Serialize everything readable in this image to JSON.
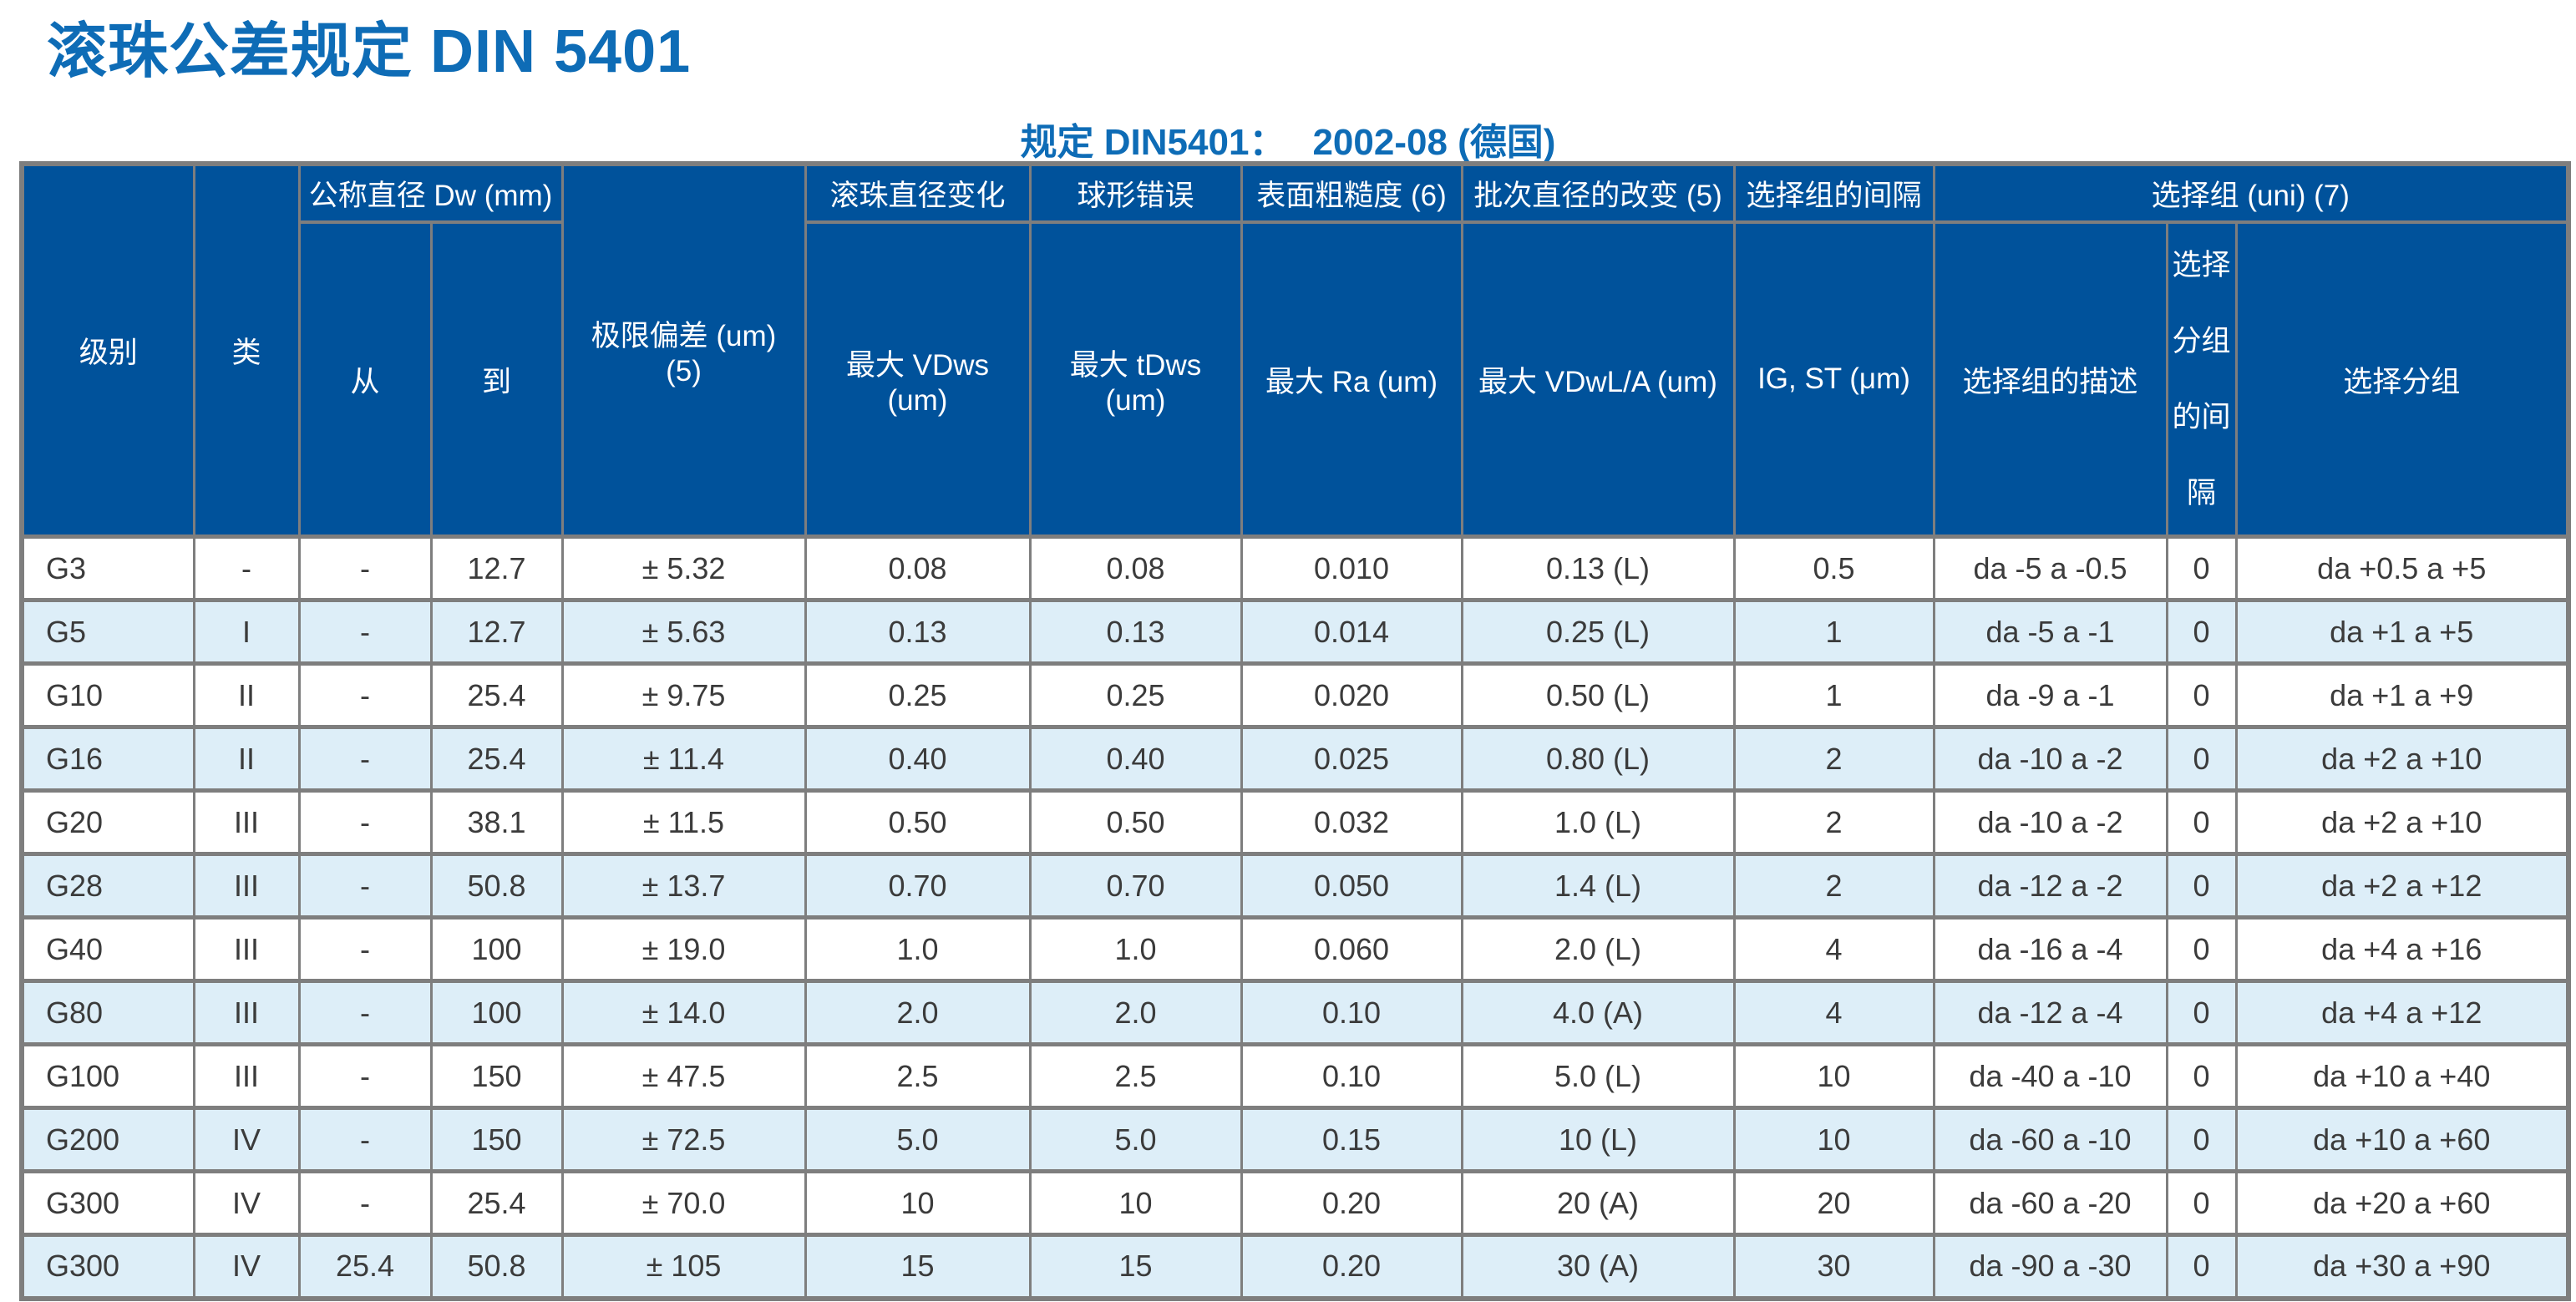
{
  "title": "滚珠公差规定 DIN 5401",
  "subtitle": {
    "label": "规定 DIN5401：",
    "value": "2002-08 (德国)"
  },
  "colors": {
    "title_blue": "#0E6CB6",
    "header_bg": "#00529B",
    "row_alt_bg": "#DDEEF8",
    "grid_line": "#7E7E7E",
    "cell_text": "#3B3B3B"
  },
  "table": {
    "header": {
      "level": "级别",
      "class": "类",
      "nominal_diameter": "公称直径 Dw (mm)",
      "from": "从",
      "to": "到",
      "limit_deviation": "极限偏差 (um) (5)",
      "ball_diameter_variation": "滚珠直径变化",
      "max_vdws": "最大 VDws (um)",
      "spherical_error": "球形错误",
      "max_tdws": "最大 tDws (um)",
      "surface_roughness": "表面粗糙度 (6)",
      "max_ra": "最大 Ra (um)",
      "lot_diameter_change": "批次直径的改变 (5)",
      "max_vdwl_a": "最大 VDwL/A (um)",
      "selection_group_interval": "选择组的间隔",
      "ig_st": "IG, ST (μm)",
      "selection_group": "选择组 (uni) (7)",
      "selection_group_description": "选择组的描述",
      "selection_subgroup_interval": "选择分组的间隔",
      "selection_subgroup": "选择分组"
    },
    "rows": [
      [
        "G3",
        "-",
        "-",
        "12.7",
        "± 5.32",
        "0.08",
        "0.08",
        "0.010",
        "0.13 (L)",
        "0.5",
        "da -5 a -0.5",
        "0",
        "da +0.5 a +5"
      ],
      [
        "G5",
        "I",
        "-",
        "12.7",
        "± 5.63",
        "0.13",
        "0.13",
        "0.014",
        "0.25 (L)",
        "1",
        "da -5 a -1",
        "0",
        "da +1 a +5"
      ],
      [
        "G10",
        "II",
        "-",
        "25.4",
        "± 9.75",
        "0.25",
        "0.25",
        "0.020",
        "0.50 (L)",
        "1",
        "da -9 a -1",
        "0",
        "da +1 a +9"
      ],
      [
        "G16",
        "II",
        "-",
        "25.4",
        "± 11.4",
        "0.40",
        "0.40",
        "0.025",
        "0.80 (L)",
        "2",
        "da -10 a -2",
        "0",
        "da +2 a +10"
      ],
      [
        "G20",
        "III",
        "-",
        "38.1",
        "± 11.5",
        "0.50",
        "0.50",
        "0.032",
        "1.0 (L)",
        "2",
        "da -10 a -2",
        "0",
        "da +2 a +10"
      ],
      [
        "G28",
        "III",
        "-",
        "50.8",
        "± 13.7",
        "0.70",
        "0.70",
        "0.050",
        "1.4 (L)",
        "2",
        "da -12 a -2",
        "0",
        "da +2 a +12"
      ],
      [
        "G40",
        "III",
        "-",
        "100",
        "± 19.0",
        "1.0",
        "1.0",
        "0.060",
        "2.0 (L)",
        "4",
        "da -16 a -4",
        "0",
        "da +4 a +16"
      ],
      [
        "G80",
        "III",
        "-",
        "100",
        "± 14.0",
        "2.0",
        "2.0",
        "0.10",
        "4.0 (A)",
        "4",
        "da -12 a -4",
        "0",
        "da +4 a +12"
      ],
      [
        "G100",
        "III",
        "-",
        "150",
        "± 47.5",
        "2.5",
        "2.5",
        "0.10",
        "5.0 (L)",
        "10",
        "da -40 a -10",
        "0",
        "da +10 a +40"
      ],
      [
        "G200",
        "IV",
        "-",
        "150",
        "± 72.5",
        "5.0",
        "5.0",
        "0.15",
        "10 (L)",
        "10",
        "da -60 a -10",
        "0",
        "da +10 a +60"
      ],
      [
        "G300",
        "IV",
        "-",
        "25.4",
        "± 70.0",
        "10",
        "10",
        "0.20",
        "20 (A)",
        "20",
        "da -60 a -20",
        "0",
        "da +20 a +60"
      ],
      [
        "G300",
        "IV",
        "25.4",
        "50.8",
        "± 105",
        "15",
        "15",
        "0.20",
        "30 (A)",
        "30",
        "da -90 a -30",
        "0",
        "da +30 a +90"
      ]
    ]
  }
}
